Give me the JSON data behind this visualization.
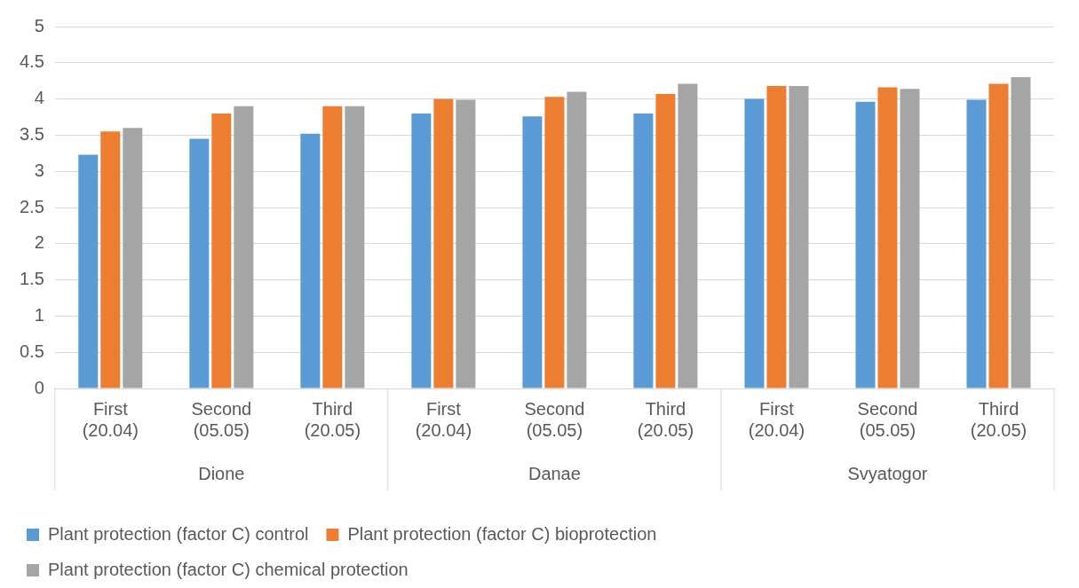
{
  "chart_data": {
    "type": "bar",
    "categories": [
      "First (20.04)",
      "Second (05.05)",
      "Third (20.05)",
      "First (20.04)",
      "Second (05.05)",
      "Third (20.05)",
      "First (20.04)",
      "Second (05.05)",
      "Third (20.05)"
    ],
    "annotations": [
      "Dione",
      "Danae",
      "Svyatogor"
    ],
    "series": [
      {
        "name": "Plant protection (factor C) control",
        "color": "#5b9bd5",
        "values": [
          3.23,
          3.45,
          3.52,
          3.8,
          3.76,
          3.8,
          4.0,
          3.96,
          3.99
        ]
      },
      {
        "name": "Plant protection (factor C) bioprotection",
        "color": "#ed7d31",
        "values": [
          3.55,
          3.8,
          3.9,
          4.0,
          4.03,
          4.07,
          4.18,
          4.16,
          4.21
        ]
      },
      {
        "name": "Plant protection (factor C) chemical protection",
        "color": "#a5a5a5",
        "values": [
          3.6,
          3.9,
          3.9,
          3.99,
          4.1,
          4.21,
          4.18,
          4.14,
          4.3
        ]
      }
    ],
    "ylim": [
      0,
      5
    ],
    "yticks": [
      0,
      0.5,
      1,
      1.5,
      2,
      2.5,
      3,
      3.5,
      4,
      4.5,
      5
    ],
    "grid": "y",
    "legend": "bottom"
  }
}
